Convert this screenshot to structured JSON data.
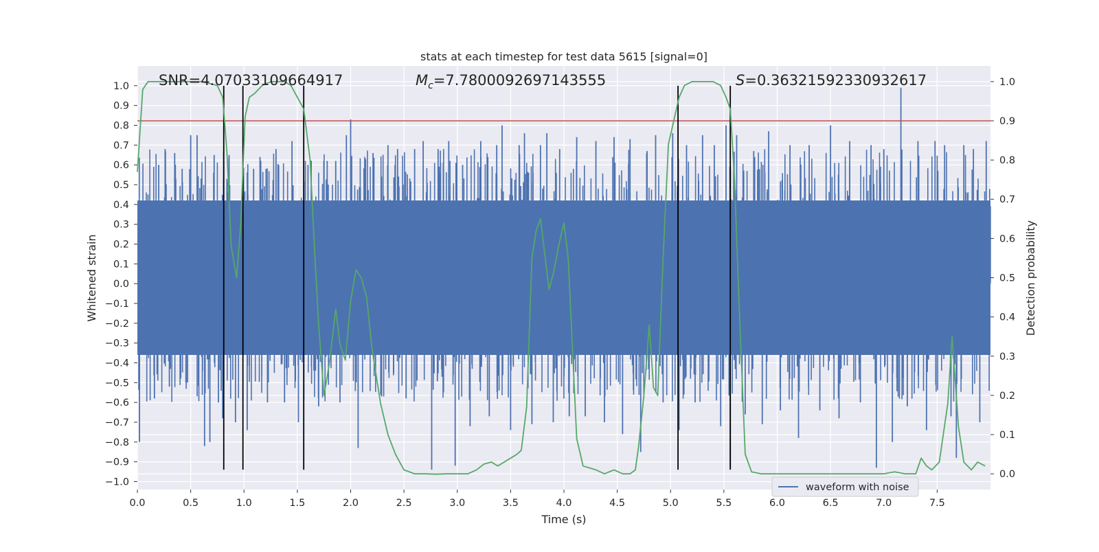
{
  "chart_data": {
    "type": "line",
    "title": "stats at each timestep for test data 5615 [signal=0]",
    "xlabel": "Time (s)",
    "ylabel": "Whitened strain",
    "y2label": "Detection probability",
    "xlim": [
      0.0,
      8.0
    ],
    "ylim": [
      -1.04,
      1.1
    ],
    "y2lim": [
      -0.04,
      1.04
    ],
    "x_ticks": [
      "0.0",
      "0.5",
      "1.0",
      "1.5",
      "2.0",
      "2.5",
      "3.0",
      "3.5",
      "4.0",
      "4.5",
      "5.0",
      "5.5",
      "6.0",
      "6.5",
      "7.0",
      "7.5"
    ],
    "y_ticks": [
      "1.0",
      "0.9",
      "0.8",
      "0.7",
      "0.6",
      "0.5",
      "0.4",
      "0.3",
      "0.2",
      "0.1",
      "0.0",
      "−0.1",
      "−0.2",
      "−0.3",
      "−0.4",
      "−0.5",
      "−0.6",
      "−0.7",
      "−0.8",
      "−0.9",
      "−1.0"
    ],
    "y2_ticks": [
      "1.0",
      "0.9",
      "0.8",
      "0.7",
      "0.6",
      "0.5",
      "0.4",
      "0.3",
      "0.2",
      "0.1",
      "0.0"
    ],
    "grid": true,
    "legend_position": "lower-right",
    "annotations": {
      "snr_label": "SNR=4.07033109664917",
      "mc_symbol": "M",
      "mc_subscript": "c",
      "mc_value": "=7.7800092697143555",
      "s_symbol": "S",
      "s_value": "=0.36321592330932617"
    },
    "threshold": 0.9,
    "detection_lines_x": [
      0.81,
      0.99,
      1.56,
      5.07,
      5.56
    ],
    "series": [
      {
        "name": "waveform with noise",
        "kind": "noise-band",
        "color": "#4c72b0",
        "dense_band": [
          -0.36,
          0.42
        ],
        "spikes": [
          [
            0.02,
            -0.8
          ],
          [
            0.1,
            0.45
          ],
          [
            0.16,
            -0.58
          ],
          [
            0.2,
            0.6
          ],
          [
            0.26,
            0.68
          ],
          [
            0.3,
            -0.52
          ],
          [
            0.35,
            0.66
          ],
          [
            0.42,
            0.58
          ],
          [
            0.47,
            -0.5
          ],
          [
            0.5,
            0.75
          ],
          [
            0.56,
            0.75
          ],
          [
            0.63,
            -0.82
          ],
          [
            0.68,
            -0.8
          ],
          [
            0.72,
            0.65
          ],
          [
            0.76,
            -0.6
          ],
          [
            0.8,
            -0.68
          ],
          [
            0.86,
            0.65
          ],
          [
            0.92,
            -0.7
          ],
          [
            1.03,
            -0.74
          ],
          [
            1.09,
            0.58
          ],
          [
            1.15,
            0.64
          ],
          [
            1.22,
            -0.6
          ],
          [
            1.3,
            0.68
          ],
          [
            1.38,
            -0.6
          ],
          [
            1.45,
            0.72
          ],
          [
            1.51,
            -0.7
          ],
          [
            1.6,
            0.6
          ],
          [
            1.7,
            -0.62
          ],
          [
            1.78,
            0.62
          ],
          [
            1.86,
            0.62
          ],
          [
            1.9,
            -0.6
          ],
          [
            1.96,
            0.75
          ],
          [
            2.0,
            0.83
          ],
          [
            2.07,
            -0.83
          ],
          [
            2.14,
            0.63
          ],
          [
            2.21,
            0.66
          ],
          [
            2.29,
            -0.57
          ],
          [
            2.35,
            0.7
          ],
          [
            2.44,
            0.68
          ],
          [
            2.52,
            -0.58
          ],
          [
            2.6,
            0.68
          ],
          [
            2.68,
            0.72
          ],
          [
            2.76,
            -0.94
          ],
          [
            2.82,
            0.68
          ],
          [
            2.92,
            0.72
          ],
          [
            2.98,
            -0.92
          ],
          [
            3.05,
            0.6
          ],
          [
            3.12,
            -0.72
          ],
          [
            3.22,
            0.72
          ],
          [
            3.3,
            -0.67
          ],
          [
            3.37,
            0.7
          ],
          [
            3.42,
            0.8
          ],
          [
            3.5,
            -0.74
          ],
          [
            3.58,
            0.7
          ],
          [
            3.63,
            0.76
          ],
          [
            3.7,
            -0.71
          ],
          [
            3.78,
            0.7
          ],
          [
            3.84,
            0.76
          ],
          [
            3.9,
            -0.7
          ],
          [
            3.96,
            0.68
          ],
          [
            4.05,
            -0.67
          ],
          [
            4.12,
            0.74
          ],
          [
            4.2,
            -0.67
          ],
          [
            4.3,
            0.72
          ],
          [
            4.38,
            -0.7
          ],
          [
            4.47,
            0.74
          ],
          [
            4.55,
            -0.76
          ],
          [
            4.62,
            0.73
          ],
          [
            4.72,
            -0.85
          ],
          [
            4.78,
            0.67
          ],
          [
            4.86,
            0.75
          ],
          [
            4.93,
            -0.6
          ],
          [
            5.02,
            0.76
          ],
          [
            5.08,
            -0.74
          ],
          [
            5.15,
            0.7
          ],
          [
            5.23,
            -0.6
          ],
          [
            5.3,
            0.75
          ],
          [
            5.41,
            0.7
          ],
          [
            5.47,
            -0.72
          ],
          [
            5.52,
            0.8
          ],
          [
            5.56,
            -0.93
          ],
          [
            5.62,
            0.75
          ],
          [
            5.7,
            -0.66
          ],
          [
            5.78,
            0.67
          ],
          [
            5.86,
            -0.71
          ],
          [
            5.92,
            0.77
          ],
          [
            6.03,
            -0.64
          ],
          [
            6.12,
            0.7
          ],
          [
            6.2,
            -0.78
          ],
          [
            6.3,
            0.7
          ],
          [
            6.4,
            -0.64
          ],
          [
            6.5,
            0.8
          ],
          [
            6.58,
            -0.68
          ],
          [
            6.68,
            0.72
          ],
          [
            6.78,
            -0.6
          ],
          [
            6.88,
            0.7
          ],
          [
            6.93,
            -0.93
          ],
          [
            7.0,
            0.68
          ],
          [
            7.08,
            -0.8
          ],
          [
            7.16,
            0.99
          ],
          [
            7.22,
            -0.62
          ],
          [
            7.32,
            0.72
          ],
          [
            7.4,
            -0.74
          ],
          [
            7.48,
            0.72
          ],
          [
            7.57,
            0.7
          ],
          [
            7.63,
            -0.67
          ],
          [
            7.68,
            -0.88
          ],
          [
            7.75,
            0.7
          ],
          [
            7.84,
            0.68
          ],
          [
            7.9,
            -0.7
          ],
          [
            7.96,
            0.72
          ]
        ]
      },
      {
        "name": "detection probability",
        "axis": "right",
        "color": "#55a868",
        "points": [
          [
            0.0,
            0.77
          ],
          [
            0.05,
            0.98
          ],
          [
            0.1,
            1.0
          ],
          [
            0.2,
            1.0
          ],
          [
            0.3,
            1.0
          ],
          [
            0.4,
            1.0
          ],
          [
            0.5,
            1.0
          ],
          [
            0.6,
            1.0
          ],
          [
            0.68,
            0.995
          ],
          [
            0.75,
            0.99
          ],
          [
            0.8,
            0.96
          ],
          [
            0.84,
            0.82
          ],
          [
            0.88,
            0.58
          ],
          [
            0.93,
            0.5
          ],
          [
            0.97,
            0.64
          ],
          [
            1.01,
            0.91
          ],
          [
            1.05,
            0.96
          ],
          [
            1.1,
            0.97
          ],
          [
            1.17,
            0.99
          ],
          [
            1.25,
            1.0
          ],
          [
            1.33,
            1.0
          ],
          [
            1.38,
            1.0
          ],
          [
            1.44,
            0.99
          ],
          [
            1.5,
            0.96
          ],
          [
            1.56,
            0.93
          ],
          [
            1.62,
            0.8
          ],
          [
            1.66,
            0.58
          ],
          [
            1.7,
            0.38
          ],
          [
            1.75,
            0.2
          ],
          [
            1.8,
            0.28
          ],
          [
            1.86,
            0.42
          ],
          [
            1.9,
            0.33
          ],
          [
            1.95,
            0.29
          ],
          [
            2.0,
            0.44
          ],
          [
            2.05,
            0.52
          ],
          [
            2.1,
            0.5
          ],
          [
            2.15,
            0.45
          ],
          [
            2.2,
            0.32
          ],
          [
            2.28,
            0.18
          ],
          [
            2.35,
            0.1
          ],
          [
            2.42,
            0.05
          ],
          [
            2.5,
            0.01
          ],
          [
            2.6,
            0.0
          ],
          [
            2.7,
            0.0
          ],
          [
            2.8,
            -0.001
          ],
          [
            2.9,
            0.0
          ],
          [
            3.0,
            0.0
          ],
          [
            3.1,
            0.0
          ],
          [
            3.18,
            0.01
          ],
          [
            3.25,
            0.025
          ],
          [
            3.32,
            0.03
          ],
          [
            3.38,
            0.02
          ],
          [
            3.44,
            0.03
          ],
          [
            3.5,
            0.04
          ],
          [
            3.56,
            0.05
          ],
          [
            3.6,
            0.06
          ],
          [
            3.65,
            0.17
          ],
          [
            3.7,
            0.55
          ],
          [
            3.74,
            0.62
          ],
          [
            3.78,
            0.65
          ],
          [
            3.82,
            0.56
          ],
          [
            3.86,
            0.47
          ],
          [
            3.9,
            0.51
          ],
          [
            3.95,
            0.58
          ],
          [
            4.0,
            0.64
          ],
          [
            4.04,
            0.55
          ],
          [
            4.08,
            0.32
          ],
          [
            4.12,
            0.09
          ],
          [
            4.18,
            0.02
          ],
          [
            4.3,
            0.01
          ],
          [
            4.38,
            0.0
          ],
          [
            4.47,
            0.01
          ],
          [
            4.55,
            0.0
          ],
          [
            4.62,
            0.0
          ],
          [
            4.67,
            0.01
          ],
          [
            4.7,
            0.07
          ],
          [
            4.75,
            0.2
          ],
          [
            4.8,
            0.38
          ],
          [
            4.84,
            0.22
          ],
          [
            4.88,
            0.2
          ],
          [
            4.93,
            0.55
          ],
          [
            4.98,
            0.84
          ],
          [
            5.03,
            0.9
          ],
          [
            5.08,
            0.96
          ],
          [
            5.13,
            0.99
          ],
          [
            5.2,
            1.0
          ],
          [
            5.3,
            1.0
          ],
          [
            5.4,
            1.0
          ],
          [
            5.47,
            0.99
          ],
          [
            5.52,
            0.96
          ],
          [
            5.56,
            0.93
          ],
          [
            5.6,
            0.75
          ],
          [
            5.64,
            0.45
          ],
          [
            5.7,
            0.05
          ],
          [
            5.76,
            0.005
          ],
          [
            5.85,
            0.0
          ],
          [
            6.0,
            0.0
          ],
          [
            6.2,
            0.0
          ],
          [
            6.5,
            0.0
          ],
          [
            6.8,
            0.0
          ],
          [
            7.0,
            0.0
          ],
          [
            7.1,
            0.005
          ],
          [
            7.2,
            0.0
          ],
          [
            7.3,
            0.0
          ],
          [
            7.35,
            0.04
          ],
          [
            7.4,
            0.02
          ],
          [
            7.45,
            0.01
          ],
          [
            7.52,
            0.03
          ],
          [
            7.6,
            0.18
          ],
          [
            7.64,
            0.35
          ],
          [
            7.7,
            0.12
          ],
          [
            7.75,
            0.03
          ],
          [
            7.82,
            0.01
          ],
          [
            7.88,
            0.03
          ],
          [
            7.95,
            0.02
          ]
        ]
      }
    ]
  }
}
